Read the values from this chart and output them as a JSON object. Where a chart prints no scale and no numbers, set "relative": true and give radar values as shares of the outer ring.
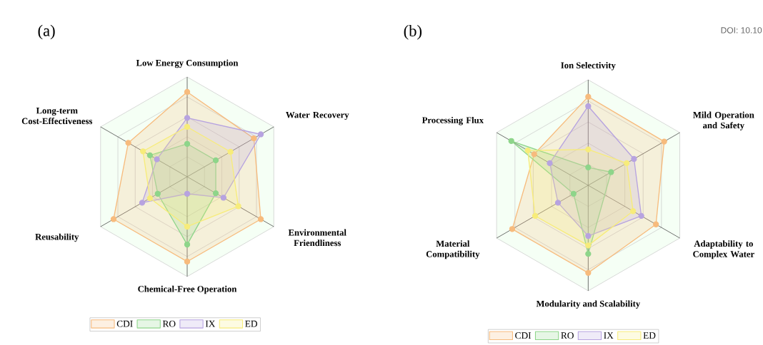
{
  "chart_data": [
    {
      "type": "radar",
      "title": "(a)",
      "relative": true,
      "legend": "bottom",
      "marker": "circle",
      "categories": [
        "Low Energy Consumption",
        "Water Recovery",
        "Environmental Friendliness",
        "Chemical-Free Operation",
        "Reusability",
        "Long-term Cost-Effectiveness"
      ],
      "series": [
        {
          "name": "CDI",
          "color": "#f7bb7d",
          "values": [
            0.85,
            0.77,
            0.85,
            0.85,
            0.85,
            0.68
          ]
        },
        {
          "name": "RO",
          "color": "#8ed58a",
          "values": [
            0.33,
            0.33,
            0.33,
            0.68,
            0.34,
            0.43
          ]
        },
        {
          "name": "IX",
          "color": "#b7a3e0",
          "values": [
            0.59,
            0.85,
            0.42,
            0.17,
            0.52,
            0.35
          ]
        },
        {
          "name": "ED",
          "color": "#f7ec7a",
          "values": [
            0.5,
            0.5,
            0.59,
            0.5,
            0.43,
            0.51
          ]
        }
      ]
    },
    {
      "type": "radar",
      "title": "(b)",
      "relative": true,
      "legend": "bottom",
      "marker": "circle",
      "categories": [
        "Ion Selectivity",
        "Mild Operation and Safety",
        "Adaptability to Complex Water",
        "Modularity and Scalability",
        "Material Compatibility",
        "Processing Flux"
      ],
      "annotations": [
        "DOI: 10.10"
      ],
      "series": [
        {
          "name": "CDI",
          "color": "#f7bb7d",
          "values": [
            0.84,
            0.83,
            0.74,
            0.83,
            0.83,
            0.59
          ]
        },
        {
          "name": "RO",
          "color": "#8ed58a",
          "values": [
            0.17,
            0.25,
            null,
            0.65,
            0.16,
            0.84
          ]
        },
        {
          "name": "IX",
          "color": "#b7a3e0",
          "values": [
            0.75,
            0.5,
            0.58,
            0.48,
            0.33,
            0.42
          ]
        },
        {
          "name": "ED",
          "color": "#f7ec7a",
          "values": [
            0.34,
            0.42,
            0.49,
            0.57,
            0.58,
            0.66
          ]
        }
      ]
    }
  ]
}
